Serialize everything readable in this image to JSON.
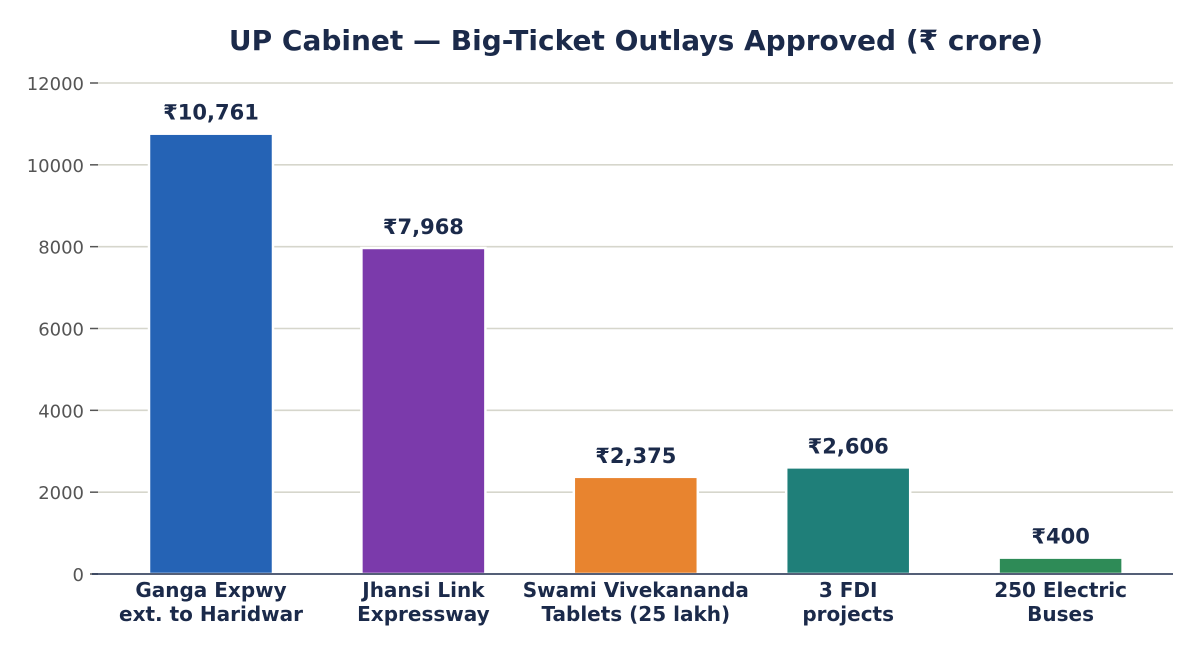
{
  "chart_data": {
    "type": "bar",
    "title": "UP Cabinet — Big-Ticket Outlays Approved (₹ crore)",
    "xlabel": "",
    "ylabel": "",
    "ylim": [
      0,
      12000
    ],
    "yticks": [
      0,
      2000,
      4000,
      6000,
      8000,
      10000,
      12000
    ],
    "grid": true,
    "categories": [
      [
        "Ganga Expwy",
        "ext. to Haridwar"
      ],
      [
        "Jhansi Link",
        "Expressway"
      ],
      [
        "Swami Vivekananda",
        "Tablets (25 lakh)"
      ],
      [
        "3 FDI",
        "projects"
      ],
      [
        "250 Electric",
        "Buses"
      ]
    ],
    "values": [
      10761,
      7968,
      2375,
      2606,
      400
    ],
    "data_labels": [
      "₹10,761",
      "₹7,968",
      "₹2,375",
      "₹2,606",
      "₹400"
    ],
    "colors": [
      "#2563b5",
      "#7b3aab",
      "#e8842f",
      "#1f7f79",
      "#2e8b57"
    ]
  }
}
